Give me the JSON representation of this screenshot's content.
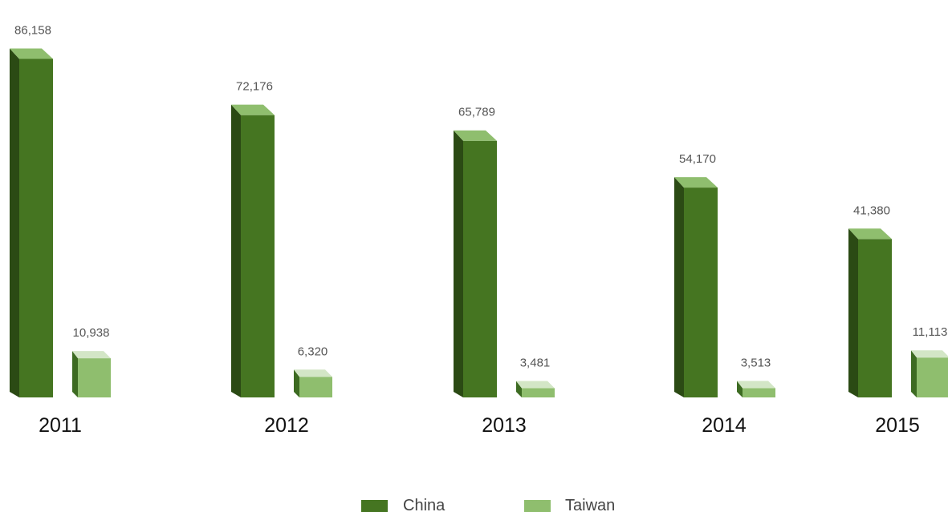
{
  "chart_data": {
    "type": "bar",
    "categories": [
      "2011",
      "2012",
      "2013",
      "2014",
      "2015"
    ],
    "value_labels": {
      "China": [
        "86,158",
        "72,176",
        "65,789",
        "54,170",
        "41,380"
      ],
      "Taiwan": [
        "10,938",
        "6,320",
        "3,481",
        "3,513",
        "11,113"
      ]
    },
    "series": [
      {
        "name": "China",
        "values": [
          86158,
          72176,
          65789,
          54170,
          41380
        ],
        "color": "#457521"
      },
      {
        "name": "Taiwan",
        "values": [
          10938,
          6320,
          3481,
          3513,
          11113
        ],
        "color": "#8fbe6e"
      }
    ],
    "legend_position": "bottom-center",
    "grid": false,
    "bar_style": "3d-columns"
  },
  "legend": {
    "items": [
      {
        "label": "China",
        "color": "#457521"
      },
      {
        "label": "Taiwan",
        "color": "#8fbe6e"
      }
    ]
  }
}
